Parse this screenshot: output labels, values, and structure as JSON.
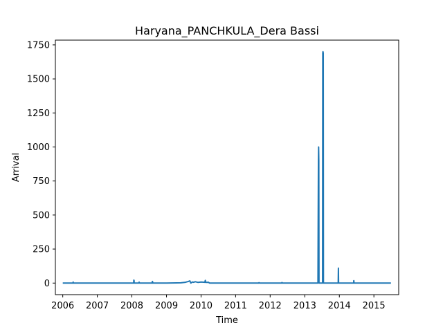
{
  "chart_data": {
    "type": "line",
    "title": "Haryana_PANCHKULA_Dera Bassi",
    "xlabel": "Time",
    "ylabel": "Arrival",
    "x_ticks": [
      "2006",
      "2007",
      "2008",
      "2009",
      "2010",
      "2011",
      "2012",
      "2013",
      "2014",
      "2015"
    ],
    "y_ticks": [
      "0",
      "250",
      "500",
      "750",
      "1000",
      "1250",
      "1500",
      "1750"
    ],
    "xlim": [
      "2005-10-15",
      "2015-09-20"
    ],
    "ylim": [
      -85,
      1785
    ],
    "grid": false,
    "series_color": "#1f77b4",
    "series": [
      {
        "x": [
          "2006-01-01",
          "2006-04-20",
          "2006-04-21",
          "2006-04-22",
          "2006-06-01",
          "2007-01-01",
          "2007-06-01",
          "2008-01-01",
          "2008-01-20",
          "2008-01-22",
          "2008-01-24",
          "2008-01-26",
          "2008-03-15",
          "2008-03-18",
          "2008-03-21",
          "2008-08-01",
          "2008-08-05",
          "2008-08-07",
          "2008-08-10",
          "2009-01-01",
          "2009-06-01",
          "2009-07-20",
          "2009-08-20",
          "2009-09-05",
          "2009-09-15",
          "2009-10-01",
          "2009-10-15",
          "2009-11-01",
          "2009-12-01",
          "2010-01-01",
          "2010-02-10",
          "2010-02-15",
          "2010-02-20",
          "2010-03-20",
          "2010-04-01",
          "2010-06-01",
          "2011-01-01",
          "2011-06-01",
          "2011-09-01",
          "2011-09-05",
          "2011-09-10",
          "2012-01-01",
          "2012-05-01",
          "2012-05-05",
          "2012-05-10",
          "2012-10-01",
          "2013-01-01",
          "2013-05-20",
          "2013-05-25",
          "2013-05-27",
          "2013-05-29",
          "2013-05-31",
          "2013-06-02",
          "2013-06-05",
          "2013-07-08",
          "2013-07-10",
          "2013-07-12",
          "2013-07-15",
          "2013-07-17",
          "2013-07-19",
          "2013-09-01",
          "2013-12-20",
          "2013-12-22",
          "2013-12-24",
          "2014-03-01",
          "2014-06-01",
          "2014-06-03",
          "2014-06-05",
          "2014-10-01",
          "2015-01-01",
          "2015-06-30"
        ],
        "y": [
          0,
          0,
          8,
          0,
          0,
          0,
          0,
          0,
          0,
          22,
          20,
          0,
          0,
          7,
          0,
          0,
          12,
          10,
          0,
          0,
          2,
          6,
          12,
          16,
          0,
          8,
          6,
          10,
          5,
          8,
          6,
          20,
          5,
          6,
          0,
          0,
          0,
          0,
          0,
          3,
          0,
          0,
          0,
          4,
          0,
          0,
          0,
          0,
          900,
          1000,
          900,
          0,
          0,
          0,
          0,
          1690,
          1700,
          1690,
          0,
          0,
          0,
          0,
          110,
          0,
          0,
          0,
          18,
          0,
          0,
          0,
          0
        ]
      }
    ]
  }
}
